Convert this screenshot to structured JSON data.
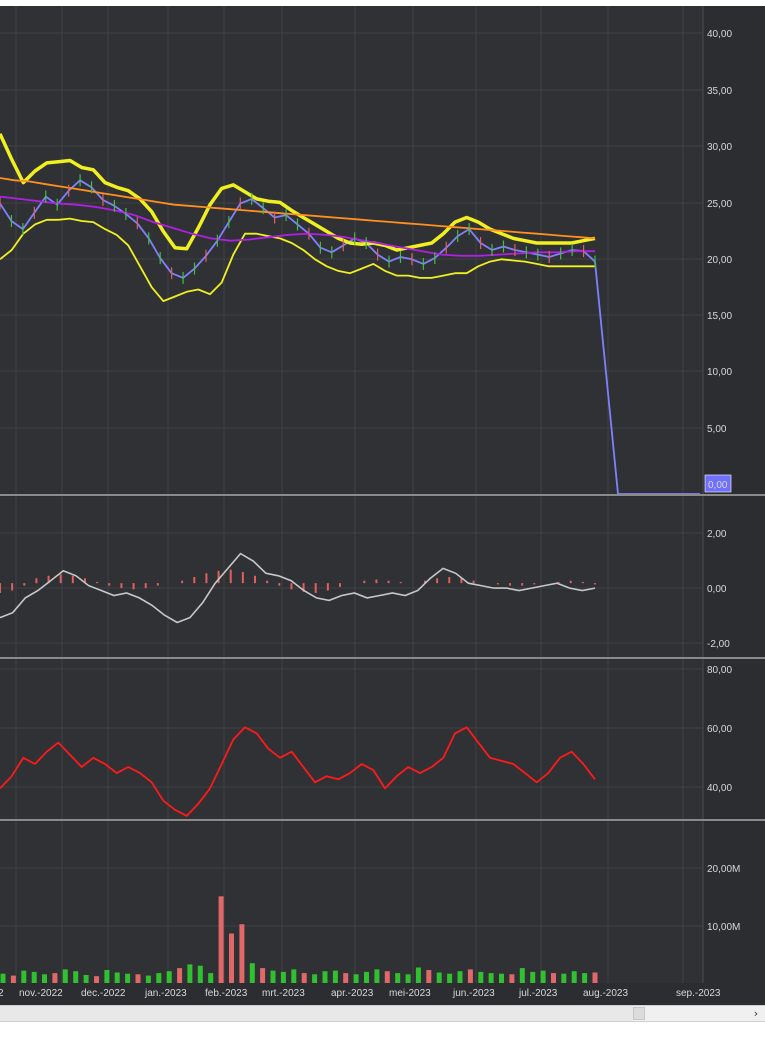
{
  "chart_data": [
    {
      "type": "line",
      "panel": "price",
      "title": "",
      "ylim": [
        0,
        42
      ],
      "yticks": [
        "40,00",
        "35,00",
        "30,00",
        "25,00",
        "20,00",
        "15,00",
        "10,00",
        "5,00"
      ],
      "last_value_label": "0,00",
      "grid": true,
      "series": [
        {
          "role": "close",
          "color": "#8080ff",
          "values": [
            25.0,
            23.5,
            22.8,
            24.2,
            25.6,
            24.9,
            26.1,
            27.0,
            26.4,
            25.3,
            24.8,
            24.1,
            23.3,
            22.0,
            20.3,
            19.0,
            18.6,
            19.4,
            20.5,
            21.8,
            23.4,
            25.0,
            25.4,
            24.6,
            23.8,
            24.0,
            23.2,
            22.4,
            21.2,
            20.8,
            21.4,
            22.0,
            21.6,
            20.6,
            20.0,
            20.4,
            20.2,
            19.8,
            20.3,
            21.2,
            22.2,
            22.8,
            21.6,
            21.0,
            21.3,
            21.0,
            20.8,
            20.6,
            20.4,
            20.7,
            21.0,
            20.9,
            20.0,
            0.0,
            0.0,
            0.0,
            0.0,
            0.0
          ]
        },
        {
          "role": "bollinger-upper",
          "color": "#f0f020",
          "values": [
            31.0,
            28.8,
            26.8,
            27.8,
            28.5,
            28.6,
            28.7,
            28.1,
            27.9,
            26.8,
            26.4,
            26.1,
            25.4,
            24.3,
            22.6,
            21.2,
            21.1,
            22.9,
            24.9,
            26.3,
            26.6,
            26.0,
            25.4,
            25.2,
            25.1,
            24.4,
            23.8,
            23.2,
            22.6,
            22.0,
            21.6,
            21.5,
            21.6,
            21.4,
            21.0,
            21.2,
            21.4,
            21.6,
            22.4,
            23.4,
            23.8,
            23.4,
            22.8,
            22.4,
            22.0,
            21.8,
            21.6,
            21.6,
            21.6,
            21.6,
            21.8,
            22.0
          ]
        },
        {
          "role": "bollinger-lower",
          "color": "#f0f020",
          "values": [
            20.2,
            21.0,
            22.4,
            23.2,
            23.6,
            23.6,
            23.7,
            23.5,
            23.4,
            22.8,
            22.3,
            21.4,
            19.6,
            17.8,
            16.6,
            17.0,
            17.4,
            17.6,
            17.2,
            18.2,
            20.6,
            22.4,
            22.4,
            22.2,
            22.0,
            21.6,
            21.0,
            20.2,
            19.6,
            19.2,
            19.0,
            19.4,
            19.8,
            19.2,
            18.8,
            18.8,
            18.6,
            18.6,
            18.8,
            19.0,
            19.0,
            19.6,
            20.0,
            20.2,
            20.1,
            20.0,
            19.8,
            19.6,
            19.6,
            19.6,
            19.6,
            19.6
          ]
        },
        {
          "role": "ma-long",
          "color": "#ff9020",
          "values": [
            27.2,
            27.0,
            26.9,
            26.7,
            26.5,
            26.3,
            26.1,
            25.9,
            25.7,
            25.5,
            25.3,
            25.1,
            24.9,
            24.8,
            24.7,
            24.6,
            24.5,
            24.4,
            24.3,
            24.2,
            24.1,
            24.0,
            23.9,
            23.8,
            23.7,
            23.6,
            23.5,
            23.4,
            23.3,
            23.2,
            23.1,
            23.0,
            22.9,
            22.8,
            22.7,
            22.6,
            22.5,
            22.4,
            22.3,
            22.2,
            22.1,
            22.0
          ]
        },
        {
          "role": "ma-mid",
          "color": "#b020e0",
          "values": [
            25.6,
            25.4,
            25.2,
            25.0,
            24.9,
            24.7,
            24.4,
            24.0,
            23.4,
            22.9,
            22.4,
            22.0,
            21.8,
            21.9,
            22.1,
            22.3,
            22.4,
            22.3,
            22.1,
            21.8,
            21.5,
            21.2,
            20.9,
            20.6,
            20.5,
            20.5,
            20.6,
            20.7,
            20.8,
            20.8,
            20.9,
            20.9
          ]
        }
      ]
    },
    {
      "type": "bar",
      "panel": "oscillator",
      "ylim": [
        -3.0,
        3.5
      ],
      "yticks": [
        "2,00",
        "0,00",
        "-2,00"
      ],
      "series": [
        {
          "role": "histogram",
          "color": "#e06060",
          "values": [
            -0.4,
            -0.3,
            -0.1,
            0.2,
            0.3,
            0.35,
            0.3,
            0.2,
            0.05,
            -0.1,
            -0.2,
            -0.25,
            -0.2,
            -0.1,
            0.0,
            0.1,
            0.25,
            0.4,
            0.5,
            0.55,
            0.45,
            0.3,
            0.1,
            -0.1,
            -0.25,
            -0.35,
            -0.4,
            -0.3,
            -0.15,
            0.0,
            0.1,
            0.15,
            0.1,
            0.05,
            0.0,
            0.1,
            0.2,
            0.25,
            0.2,
            0.1,
            0.0,
            -0.05,
            -0.1,
            -0.1,
            -0.05,
            0.0,
            0.05,
            0.1,
            0.05,
            -0.05
          ]
        },
        {
          "role": "line",
          "color": "#c8c8c8",
          "values": [
            -1.4,
            -1.2,
            -0.6,
            -0.3,
            0.1,
            0.5,
            0.3,
            -0.1,
            -0.3,
            -0.5,
            -0.4,
            -0.6,
            -0.9,
            -1.3,
            -1.6,
            -1.4,
            -0.8,
            0.0,
            0.6,
            1.2,
            0.9,
            0.4,
            0.3,
            0.1,
            -0.3,
            -0.6,
            -0.7,
            -0.5,
            -0.4,
            -0.6,
            -0.5,
            -0.4,
            -0.5,
            -0.3,
            0.2,
            0.6,
            0.4,
            0.0,
            -0.1,
            -0.2,
            -0.2,
            -0.3,
            -0.2,
            -0.1,
            0.0,
            -0.2,
            -0.3,
            -0.2
          ]
        }
      ]
    },
    {
      "type": "line",
      "panel": "rsi",
      "ylim": [
        30,
        82
      ],
      "yticks": [
        "80,00",
        "60,00",
        "40,00"
      ],
      "series": [
        {
          "role": "rsi",
          "color": "#ff1a1a",
          "values": [
            40,
            44,
            50,
            48,
            52,
            55,
            51,
            47,
            50,
            48,
            45,
            47,
            45,
            42,
            36,
            33,
            31,
            35,
            40,
            48,
            56,
            60,
            58,
            53,
            50,
            52,
            47,
            42,
            44,
            43,
            45,
            48,
            46,
            40,
            44,
            47,
            45,
            47,
            50,
            58,
            60,
            55,
            50,
            49,
            48,
            45,
            42,
            45,
            50,
            52,
            48,
            43
          ]
        }
      ]
    },
    {
      "type": "bar",
      "panel": "volume",
      "ylim": [
        0,
        26
      ],
      "yticks": [
        "20,00M",
        "10,00M"
      ],
      "series": [
        {
          "role": "volume",
          "color": "#30c030",
          "values": [
            1.5,
            1.2,
            2.0,
            1.8,
            1.4,
            1.6,
            2.2,
            1.9,
            1.3,
            1.1,
            2.1,
            1.7,
            1.5,
            1.4,
            1.2,
            1.6,
            1.9,
            2.4,
            3.0,
            2.8,
            1.6,
            14.0,
            8.0,
            9.5,
            3.2,
            2.4,
            2.0,
            1.8,
            2.2,
            1.6,
            1.4,
            1.9,
            2.0,
            1.6,
            1.4,
            1.8,
            2.2,
            1.9,
            1.6,
            1.4,
            2.5,
            2.1,
            1.7,
            1.5,
            1.9,
            2.2,
            1.8,
            1.6,
            1.5,
            1.4,
            2.4,
            1.8,
            2.0,
            1.6,
            1.5,
            1.9,
            1.6,
            1.7
          ]
        }
      ]
    }
  ],
  "x_axis_labels": [
    "2",
    "nov.-2022",
    "dec.-2022",
    "jan.-2023",
    "feb.-2023",
    "mrt.-2023",
    "apr.-2023",
    "mei-2023",
    "jun.-2023",
    "jul.-2023",
    "aug.-2023",
    "sep.-2023"
  ],
  "scrollbar": {
    "arrow_glyph": "›"
  }
}
